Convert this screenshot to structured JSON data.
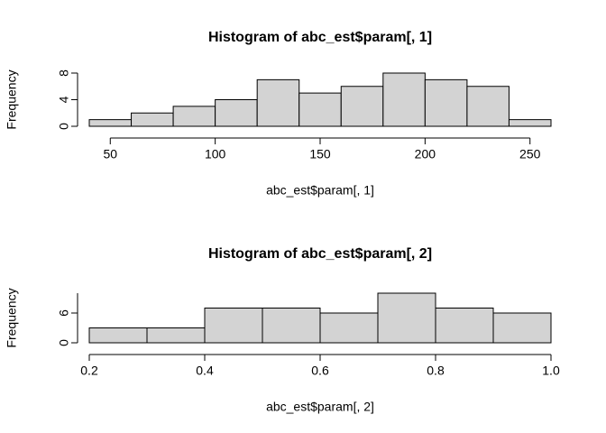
{
  "chart_data": [
    {
      "type": "histogram",
      "title": "Histogram of abc_est$param[, 1]",
      "xlabel": "abc_est$param[, 1]",
      "ylabel": "Frequency",
      "bins": [
        40,
        60,
        80,
        100,
        120,
        140,
        160,
        180,
        200,
        220,
        240,
        260
      ],
      "values": [
        1,
        2,
        3,
        4,
        7,
        5,
        6,
        8,
        7,
        6,
        1
      ],
      "color": "#d3d3d3",
      "xlim": [
        40,
        260
      ],
      "xticks": [
        50,
        100,
        150,
        200,
        250
      ],
      "ylim": [
        0,
        8
      ],
      "yticks": [
        0,
        4,
        8
      ]
    },
    {
      "type": "histogram",
      "title": "Histogram of abc_est$param[, 2]",
      "xlabel": "abc_est$param[, 2]",
      "ylabel": "Frequency",
      "bins": [
        0.2,
        0.3,
        0.4,
        0.5,
        0.6,
        0.7,
        0.8,
        0.9,
        1.0
      ],
      "values": [
        3,
        3,
        7,
        7,
        6,
        10,
        7,
        6
      ],
      "color": "#d3d3d3",
      "xlim": [
        0.2,
        1.0
      ],
      "xticks": [
        0.2,
        0.4,
        0.6,
        0.8,
        {
          "value": 1.0,
          "label": "1.0"
        }
      ],
      "ylim": [
        0,
        10
      ],
      "yticks": [
        0,
        6
      ]
    }
  ]
}
